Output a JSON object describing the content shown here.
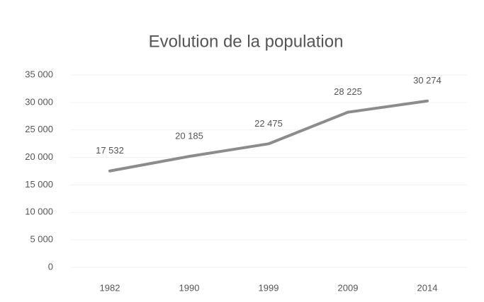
{
  "chart_data": {
    "type": "line",
    "title": "Evolution de la population",
    "categories": [
      "1982",
      "1990",
      "1999",
      "2009",
      "2014"
    ],
    "series": [
      {
        "name": "Population",
        "color": "#8c8c8c",
        "values": [
          17532,
          20185,
          22475,
          28225,
          30274
        ],
        "value_labels": [
          "17 532",
          "20 185",
          "22 475",
          "28 225",
          "30 274"
        ]
      }
    ],
    "ylim": [
      0,
      35000
    ],
    "yticks": [
      0,
      {
        "value": 5000,
        "label": "5 000"
      },
      {
        "value": 10000,
        "label": "10 000"
      },
      {
        "value": 15000,
        "label": "15 000"
      },
      {
        "value": 20000,
        "label": "20 000"
      },
      {
        "value": 25000,
        "label": "25 000"
      },
      {
        "value": 30000,
        "label": "30 000"
      },
      {
        "value": 35000,
        "label": "35 000"
      }
    ],
    "grid": true
  }
}
